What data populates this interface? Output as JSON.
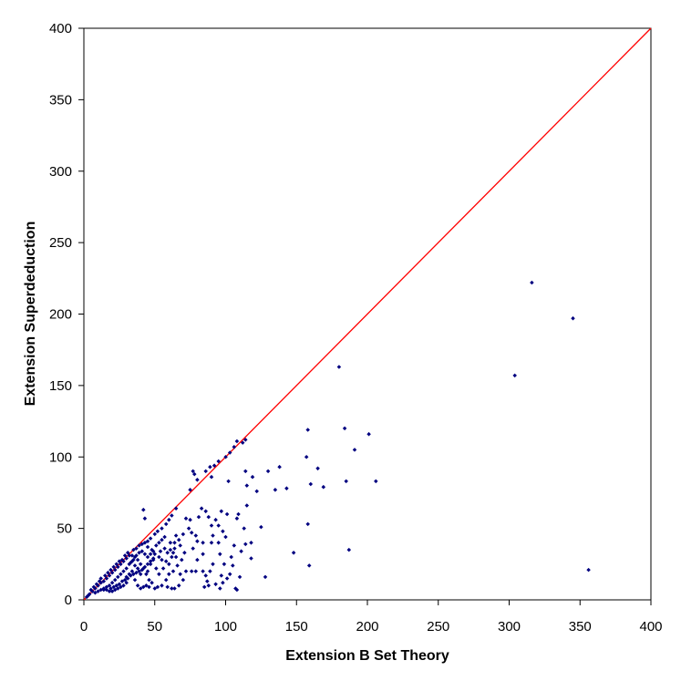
{
  "chart_data": {
    "type": "scatter",
    "title": "",
    "xlabel": "Extension B Set Theory",
    "ylabel": "Extension Superdeduction",
    "xlim": [
      0,
      400
    ],
    "ylim": [
      0,
      400
    ],
    "xticks": [
      0,
      50,
      100,
      150,
      200,
      250,
      300,
      350,
      400
    ],
    "yticks": [
      0,
      50,
      100,
      150,
      200,
      250,
      300,
      350,
      400
    ],
    "grid": false,
    "legend": "none",
    "reference_line": {
      "from": [
        0,
        0
      ],
      "to": [
        400,
        400
      ],
      "color": "#ff0000"
    },
    "series": [
      {
        "color": "#000080",
        "points": [
          [
            316,
            222
          ],
          [
            345,
            197
          ],
          [
            304,
            157
          ],
          [
            356,
            21
          ],
          [
            180,
            163
          ],
          [
            158,
            119
          ],
          [
            184,
            120
          ],
          [
            201,
            116
          ],
          [
            191,
            105
          ],
          [
            157,
            100
          ],
          [
            206,
            83
          ],
          [
            185,
            83
          ],
          [
            169,
            79
          ],
          [
            165,
            92
          ],
          [
            160,
            81
          ],
          [
            158,
            53
          ],
          [
            159,
            24
          ],
          [
            187,
            35
          ],
          [
            148,
            33
          ],
          [
            128,
            16
          ],
          [
            112,
            110
          ],
          [
            108,
            111
          ],
          [
            106,
            107
          ],
          [
            103,
            103
          ],
          [
            100,
            100
          ],
          [
            114,
            112
          ],
          [
            95,
            97
          ],
          [
            92,
            94
          ],
          [
            89,
            93
          ],
          [
            86,
            90
          ],
          [
            80,
            84
          ],
          [
            75,
            77
          ],
          [
            78,
            88
          ],
          [
            77,
            90
          ],
          [
            90,
            86
          ],
          [
            114,
            90
          ],
          [
            119,
            86
          ],
          [
            122,
            76
          ],
          [
            130,
            90
          ],
          [
            135,
            77
          ],
          [
            138,
            93
          ],
          [
            143,
            78
          ],
          [
            115,
            80
          ],
          [
            102,
            83
          ],
          [
            97,
            62
          ],
          [
            101,
            60
          ],
          [
            108,
            57
          ],
          [
            109,
            60
          ],
          [
            115,
            66
          ],
          [
            113,
            50
          ],
          [
            125,
            51
          ],
          [
            118,
            40
          ],
          [
            111,
            34
          ],
          [
            99,
            25
          ],
          [
            105,
            24
          ],
          [
            110,
            16
          ],
          [
            107,
            8
          ],
          [
            108,
            7
          ],
          [
            118,
            29
          ],
          [
            114,
            39
          ],
          [
            90,
            52
          ],
          [
            93,
            56
          ],
          [
            90,
            40
          ],
          [
            91,
            45
          ],
          [
            95,
            40
          ],
          [
            96,
            32
          ],
          [
            91,
            25
          ],
          [
            89,
            20
          ],
          [
            88,
            10
          ],
          [
            93,
            11
          ],
          [
            97,
            17
          ],
          [
            84,
            40
          ],
          [
            84,
            32
          ],
          [
            70,
            46
          ],
          [
            74,
            50
          ],
          [
            72,
            57
          ],
          [
            75,
            56
          ],
          [
            76,
            47
          ],
          [
            79,
            45
          ],
          [
            80,
            41
          ],
          [
            77,
            36
          ],
          [
            80,
            28
          ],
          [
            79,
            20
          ],
          [
            76,
            20
          ],
          [
            72,
            20
          ],
          [
            69,
            28
          ],
          [
            71,
            33
          ],
          [
            65,
            45
          ],
          [
            67,
            42
          ],
          [
            68,
            38
          ],
          [
            60,
            56
          ],
          [
            62,
            59
          ],
          [
            65,
            64
          ],
          [
            58,
            53
          ],
          [
            55,
            50
          ],
          [
            52,
            48
          ],
          [
            50,
            46
          ],
          [
            47,
            43
          ],
          [
            45,
            41
          ],
          [
            43,
            40
          ],
          [
            42,
            63
          ],
          [
            43,
            57
          ],
          [
            45,
            37
          ],
          [
            48,
            35
          ],
          [
            50,
            32
          ],
          [
            53,
            30
          ],
          [
            55,
            28
          ],
          [
            58,
            27
          ],
          [
            60,
            25
          ],
          [
            62,
            30
          ],
          [
            64,
            40
          ],
          [
            64,
            36
          ],
          [
            61,
            40
          ],
          [
            63,
            20
          ],
          [
            60,
            18
          ],
          [
            58,
            14
          ],
          [
            55,
            10
          ],
          [
            52,
            9
          ],
          [
            50,
            8
          ],
          [
            48,
            12
          ],
          [
            46,
            14
          ],
          [
            44,
            18
          ],
          [
            42,
            22
          ],
          [
            40,
            25
          ],
          [
            38,
            28
          ],
          [
            36,
            30
          ],
          [
            34,
            31
          ],
          [
            32,
            31
          ],
          [
            30,
            29
          ],
          [
            28,
            27
          ],
          [
            26,
            25
          ],
          [
            24,
            23
          ],
          [
            22,
            21
          ],
          [
            20,
            19
          ],
          [
            18,
            17
          ],
          [
            16,
            15
          ],
          [
            14,
            13
          ],
          [
            12,
            12
          ],
          [
            10,
            10
          ],
          [
            8,
            8
          ],
          [
            6,
            6
          ],
          [
            4,
            4
          ],
          [
            3,
            3
          ],
          [
            2,
            2
          ],
          [
            40,
            18
          ],
          [
            38,
            22
          ],
          [
            36,
            24
          ],
          [
            34,
            27
          ],
          [
            32,
            25
          ],
          [
            30,
            22
          ],
          [
            28,
            20
          ],
          [
            26,
            18
          ],
          [
            24,
            16
          ],
          [
            22,
            14
          ],
          [
            20,
            12
          ],
          [
            18,
            10
          ],
          [
            16,
            9
          ],
          [
            14,
            8
          ],
          [
            12,
            7
          ],
          [
            10,
            6
          ],
          [
            8,
            5
          ],
          [
            45,
            20
          ],
          [
            47,
            25
          ],
          [
            49,
            28
          ],
          [
            51,
            22
          ],
          [
            53,
            18
          ],
          [
            56,
            22
          ],
          [
            54,
            34
          ],
          [
            57,
            36
          ],
          [
            59,
            33
          ],
          [
            61,
            35
          ],
          [
            63,
            33
          ],
          [
            65,
            30
          ],
          [
            66,
            24
          ],
          [
            68,
            18
          ],
          [
            70,
            14
          ],
          [
            67,
            10
          ],
          [
            64,
            8
          ],
          [
            62,
            8
          ],
          [
            59,
            9
          ],
          [
            30,
            12
          ],
          [
            28,
            10
          ],
          [
            26,
            9
          ],
          [
            24,
            8
          ],
          [
            22,
            7
          ],
          [
            20,
            6
          ],
          [
            18,
            6
          ],
          [
            16,
            7
          ],
          [
            14,
            7
          ],
          [
            30,
            16
          ],
          [
            32,
            18
          ],
          [
            34,
            20
          ],
          [
            36,
            14
          ],
          [
            38,
            10
          ],
          [
            40,
            8
          ],
          [
            42,
            9
          ],
          [
            44,
            10
          ],
          [
            46,
            9
          ],
          [
            12,
            15
          ],
          [
            11,
            13
          ],
          [
            9,
            11
          ],
          [
            7,
            9
          ],
          [
            5,
            7
          ],
          [
            15,
            17
          ],
          [
            17,
            19
          ],
          [
            19,
            21
          ],
          [
            21,
            23
          ],
          [
            23,
            25
          ],
          [
            25,
            27
          ],
          [
            27,
            28
          ],
          [
            29,
            31
          ],
          [
            31,
            33
          ],
          [
            35,
            35
          ],
          [
            37,
            36
          ],
          [
            39,
            38
          ],
          [
            41,
            39
          ],
          [
            33,
            26
          ],
          [
            35,
            28
          ],
          [
            37,
            31
          ],
          [
            39,
            33
          ],
          [
            41,
            34
          ],
          [
            43,
            32
          ],
          [
            45,
            30
          ],
          [
            47,
            32
          ],
          [
            49,
            34
          ],
          [
            51,
            38
          ],
          [
            53,
            40
          ],
          [
            55,
            42
          ],
          [
            57,
            44
          ],
          [
            19,
            8
          ],
          [
            21,
            9
          ],
          [
            23,
            10
          ],
          [
            25,
            11
          ],
          [
            27,
            13
          ],
          [
            29,
            14
          ],
          [
            31,
            15
          ],
          [
            33,
            17
          ],
          [
            35,
            18
          ],
          [
            37,
            19
          ],
          [
            39,
            20
          ],
          [
            41,
            21
          ],
          [
            43,
            23
          ],
          [
            45,
            25
          ],
          [
            47,
            27
          ],
          [
            49,
            29
          ],
          [
            84,
            20
          ],
          [
            86,
            17
          ],
          [
            87,
            13
          ],
          [
            85,
            9
          ],
          [
            96,
            8
          ],
          [
            98,
            12
          ],
          [
            101,
            15
          ],
          [
            103,
            18
          ],
          [
            104,
            30
          ],
          [
            106,
            38
          ],
          [
            100,
            44
          ],
          [
            98,
            48
          ],
          [
            95,
            52
          ],
          [
            88,
            58
          ],
          [
            86,
            62
          ],
          [
            83,
            64
          ],
          [
            81,
            58
          ]
        ]
      }
    ]
  }
}
